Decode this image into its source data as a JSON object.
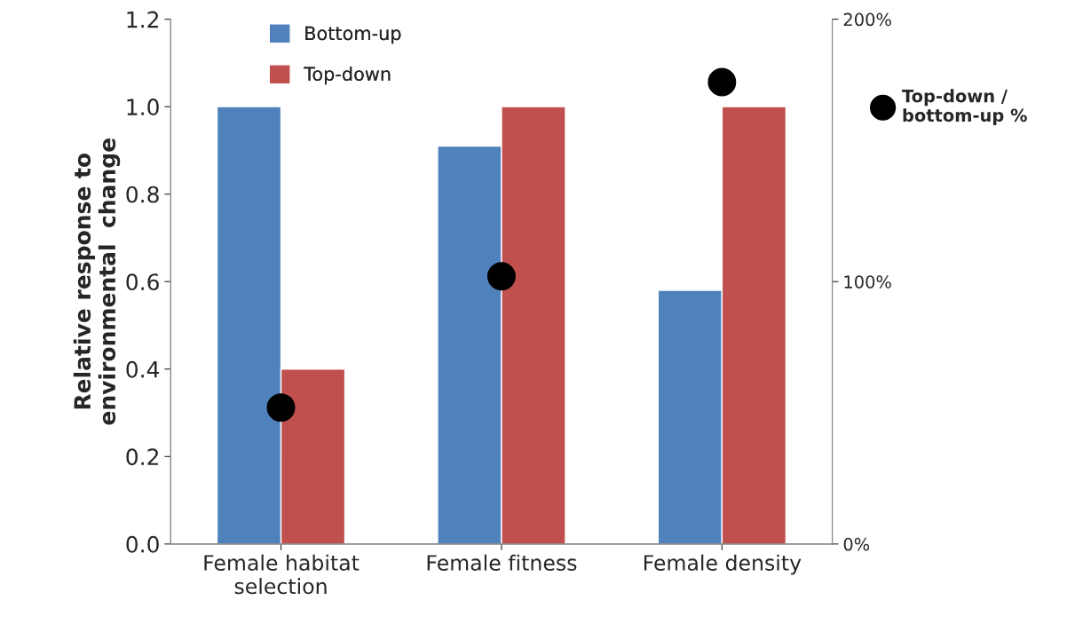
{
  "chart_data": {
    "type": "bar",
    "categories": [
      "Female habitat\nselection",
      "Female fitness",
      "Female density"
    ],
    "ylabel": "Relative response to\nenvironmental  change",
    "ylim": [
      0,
      1.2
    ],
    "yticks": [
      {
        "value": 0,
        "label": "0.0"
      },
      0.2,
      0.4,
      0.6,
      0.8,
      {
        "value": 1,
        "label": "1.0"
      },
      1.2
    ],
    "y2lim": [
      0,
      200
    ],
    "y2ticks": [
      {
        "value": 0,
        "label": "0%"
      },
      {
        "value": 100,
        "label": "100%"
      },
      {
        "value": 200,
        "label": "200%"
      }
    ],
    "series": [
      {
        "name": "Bottom-up",
        "color": "#4f81bd",
        "values": [
          1.0,
          0.91,
          0.58
        ]
      },
      {
        "name": "Top-down",
        "color": "#c0504d",
        "values": [
          0.4,
          1.0,
          1.0
        ]
      },
      {
        "name": "Top-down /\nbottom-up %",
        "type": "scatter",
        "axis": "y2",
        "marker": "circle",
        "color": "#000000",
        "values": [
          52,
          102,
          176
        ]
      }
    ],
    "legend": "top",
    "grid": false
  }
}
